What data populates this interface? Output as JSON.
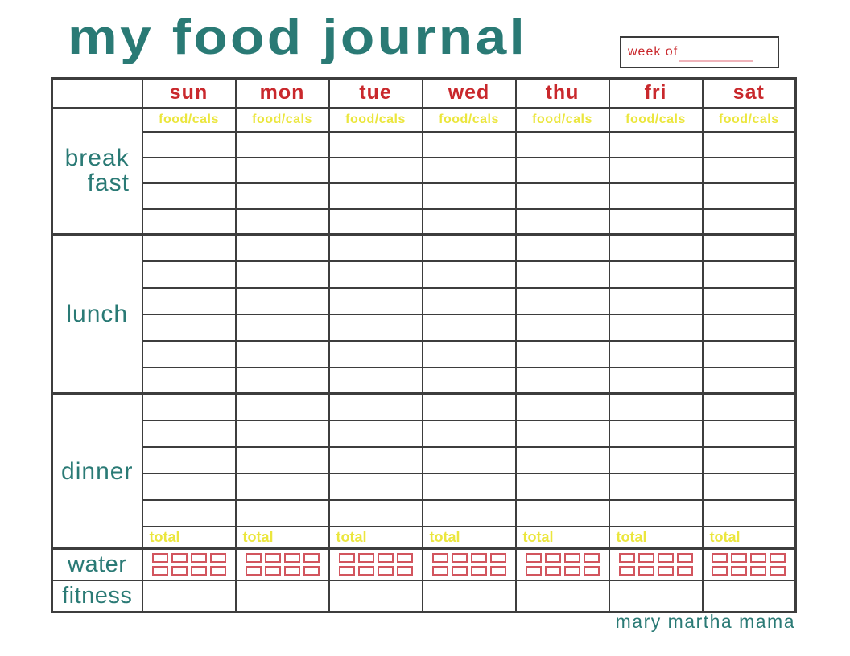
{
  "title": "my food journal",
  "week_box": {
    "label": "week of"
  },
  "table": {
    "days": [
      "sun",
      "mon",
      "tue",
      "wed",
      "thu",
      "fri",
      "sat"
    ],
    "food_cals_label": "food/cals",
    "total_label": "total",
    "sections": {
      "breakfast": {
        "line1": "break",
        "line2": "fast",
        "entry_rows": 4
      },
      "lunch": {
        "label": "lunch",
        "entry_rows": 6
      },
      "dinner": {
        "label": "dinner",
        "entry_rows": 5
      },
      "water": {
        "label": "water",
        "checkboxes_per_day": 8
      },
      "fitness": {
        "label": "fitness",
        "entry_rows": 1
      }
    }
  },
  "footer": {
    "credit": "mary martha mama"
  },
  "colors": {
    "teal": "#2a7a75",
    "red": "#c9282c",
    "yellow": "#ebe63d",
    "pink-underline": "#efb3ba",
    "checkbox-red": "#d2555e",
    "grid": "#3d3d3d"
  }
}
